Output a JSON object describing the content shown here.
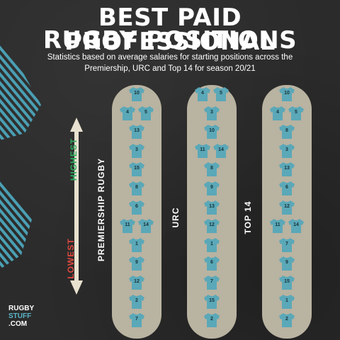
{
  "title": {
    "line1": "BEST PAID PROFESSIONAL",
    "line2": "RUGBY POSITIONS"
  },
  "subtitle": {
    "line1": "Statistics based on average salaries for starting positions across the",
    "line2": "Premiership, URC and Top 14 for season 20/21"
  },
  "scale": {
    "highest": "HIGHEST",
    "lowest": "LOWEST"
  },
  "leagues": [
    {
      "name": "PREMIERSHIP RUGBY",
      "rows": [
        [
          "10"
        ],
        [
          "4",
          "5"
        ],
        [
          "13"
        ],
        [
          "3"
        ],
        [
          "15"
        ],
        [
          "8"
        ],
        [
          "6"
        ],
        [
          "11",
          "14"
        ],
        [
          "1"
        ],
        [
          "9"
        ],
        [
          "12"
        ],
        [
          "2"
        ],
        [
          "7"
        ]
      ]
    },
    {
      "name": "URC",
      "rows": [
        [
          "4",
          "5"
        ],
        [
          "3"
        ],
        [
          "10"
        ],
        [
          "11",
          "14"
        ],
        [
          "8"
        ],
        [
          "9"
        ],
        [
          "13"
        ],
        [
          "12"
        ],
        [
          "1"
        ],
        [
          "6"
        ],
        [
          "7"
        ],
        [
          "15"
        ],
        [
          "2"
        ]
      ]
    },
    {
      "name": "TOP 14",
      "rows": [
        [
          "10"
        ],
        [
          "4",
          "5"
        ],
        [
          "8"
        ],
        [
          "3"
        ],
        [
          "13"
        ],
        [
          "6"
        ],
        [
          "12"
        ],
        [
          "11",
          "14"
        ],
        [
          "7"
        ],
        [
          "9"
        ],
        [
          "15"
        ],
        [
          "1"
        ],
        [
          "2"
        ]
      ]
    }
  ],
  "logo": {
    "line1": "RUGBY",
    "line2": "STUFF",
    "line3": ".COM"
  },
  "colors": {
    "shirt": "#5aa8b8",
    "pill": "#b9b3a1",
    "stripe": "#4a9fb3",
    "highest": "#2fae5f",
    "lowest": "#e0483e"
  }
}
